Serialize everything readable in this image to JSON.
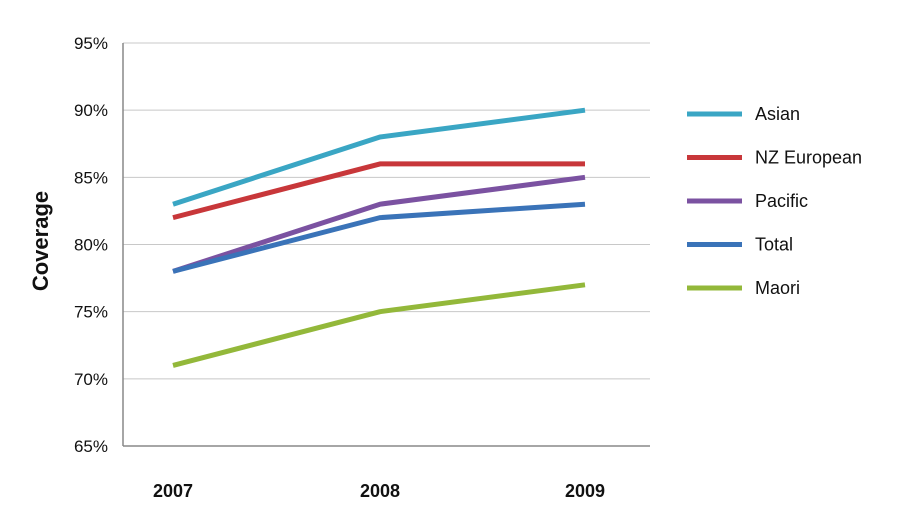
{
  "chart_data": {
    "type": "line",
    "title": "",
    "xlabel": "",
    "ylabel": "Coverage",
    "categories": [
      "2007",
      "2008",
      "2009"
    ],
    "y_tick_labels": [
      "65%",
      "70%",
      "75%",
      "80%",
      "85%",
      "90%",
      "95%"
    ],
    "ylim": [
      65,
      95
    ],
    "y_unit": "%",
    "grid": true,
    "legend_position": "right",
    "series": [
      {
        "name": "Asian",
        "color": "#3aa6c4",
        "values": [
          83,
          88,
          90
        ]
      },
      {
        "name": "NZ European",
        "color": "#c8373a",
        "values": [
          82,
          86,
          86
        ]
      },
      {
        "name": "Pacific",
        "color": "#7b52a1",
        "values": [
          78,
          83,
          85
        ]
      },
      {
        "name": "Total",
        "color": "#3a73b8",
        "values": [
          78,
          82,
          83
        ]
      },
      {
        "name": "Maori",
        "color": "#93b83a",
        "values": [
          71,
          75,
          77
        ]
      }
    ]
  }
}
